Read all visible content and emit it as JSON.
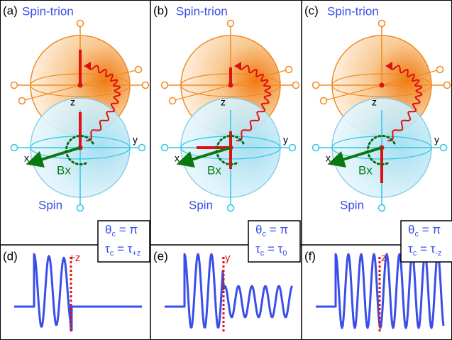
{
  "panels": [
    {
      "label": "(a)",
      "title": "Spin-trion",
      "bottom_label": "Spin",
      "field_label": "Bx",
      "axes": {
        "x": "x",
        "y": "y",
        "z": "z"
      },
      "theta": {
        "symbol": "θ",
        "sub": "c",
        "rhs": " = π"
      },
      "tau": {
        "symbol": "τ",
        "sub": "c",
        "eq": " = τ",
        "rhs_sub": "+z"
      }
    },
    {
      "label": "(b)",
      "title": "Spin-trion",
      "bottom_label": "Spin",
      "field_label": "Bx",
      "axes": {
        "x": "x",
        "y": "y",
        "z": "z"
      },
      "theta": {
        "symbol": "θ",
        "sub": "c",
        "rhs": " = π"
      },
      "tau": {
        "symbol": "τ",
        "sub": "c",
        "eq": " = τ",
        "rhs_sub": "0"
      }
    },
    {
      "label": "(c)",
      "title": "Spin-trion",
      "bottom_label": "Spin",
      "field_label": "Bx",
      "axes": {
        "x": "x",
        "y": "y",
        "z": "z"
      },
      "theta": {
        "symbol": "θ",
        "sub": "c",
        "rhs": " = π"
      },
      "tau": {
        "symbol": "τ",
        "sub": "c",
        "eq": " = τ",
        "rhs_sub": "-z"
      }
    }
  ],
  "traces": [
    {
      "label": "(d)",
      "marker": "+z"
    },
    {
      "label": "(e)",
      "marker": "-y"
    },
    {
      "label": "(f)",
      "marker": "-z"
    }
  ]
}
